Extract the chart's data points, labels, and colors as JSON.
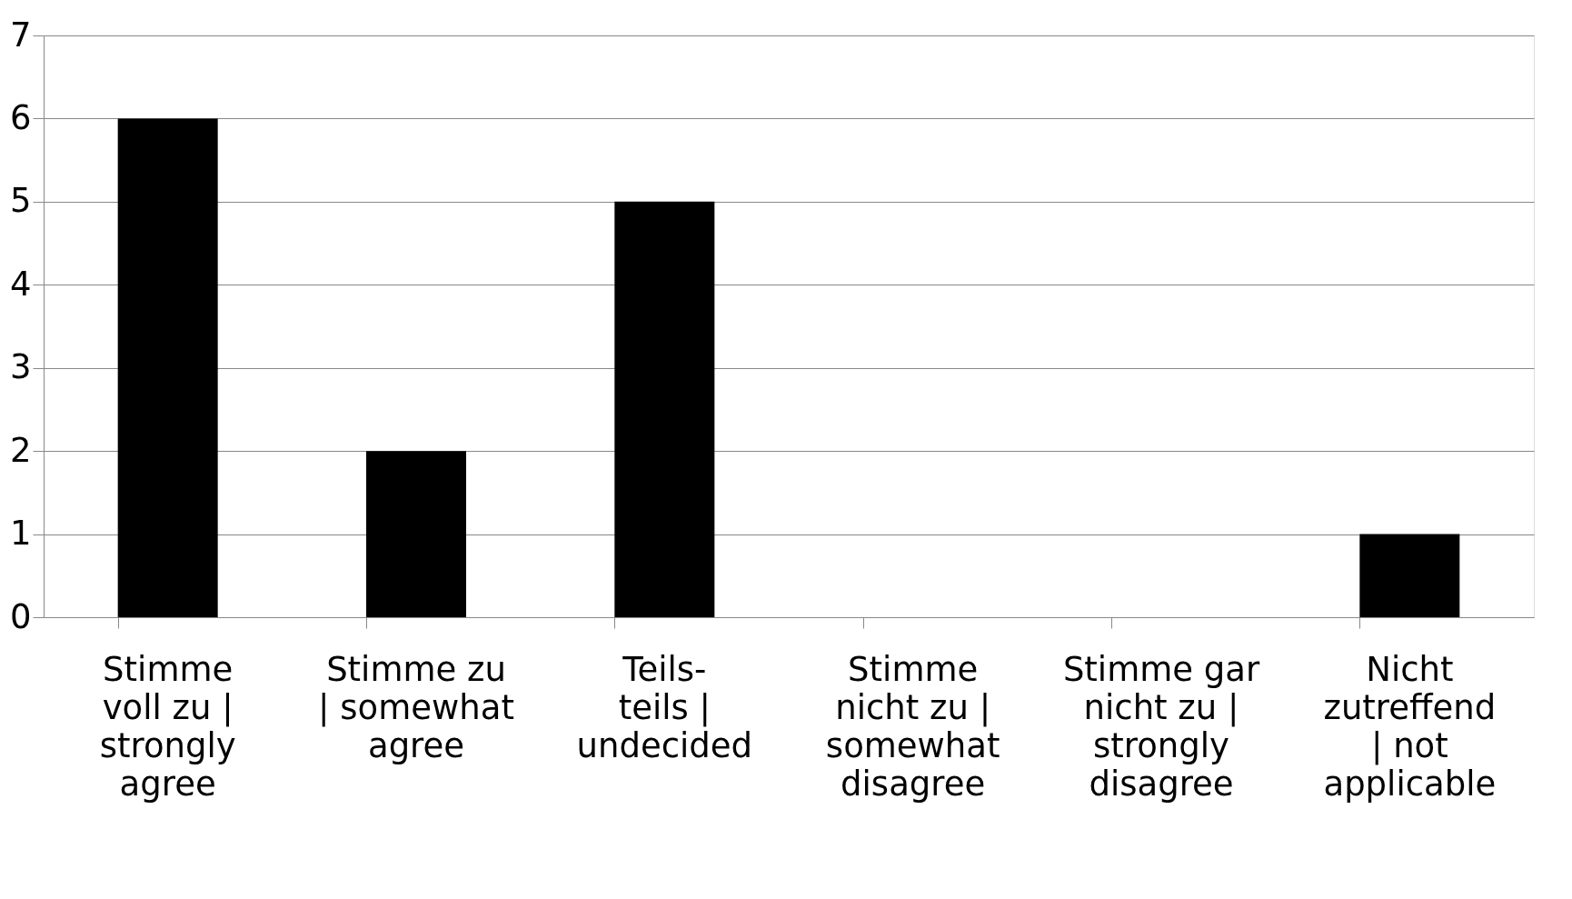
{
  "chart_data": {
    "type": "bar",
    "categories": [
      "Stimme voll zu | strongly agree",
      "Stimme zu | somewhat agree",
      "Teils-teils | undecided",
      "Stimme nicht zu | somewhat disagree",
      "Stimme gar nicht zu | strongly disagree",
      "Nicht zutreffend | not applicable"
    ],
    "values": [
      6,
      2,
      5,
      0,
      0,
      1
    ],
    "color": "#000000",
    "ylim": [
      0,
      7
    ],
    "yticks": [
      0,
      1,
      2,
      3,
      4,
      5,
      6,
      7
    ],
    "grid": "y"
  }
}
